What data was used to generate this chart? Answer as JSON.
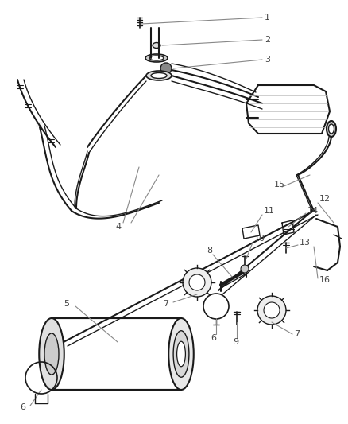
{
  "bg_color": "#ffffff",
  "line_color": "#1a1a1a",
  "label_color": "#444444",
  "leader_color": "#888888",
  "figsize": [
    4.38,
    5.33
  ],
  "dpi": 100
}
